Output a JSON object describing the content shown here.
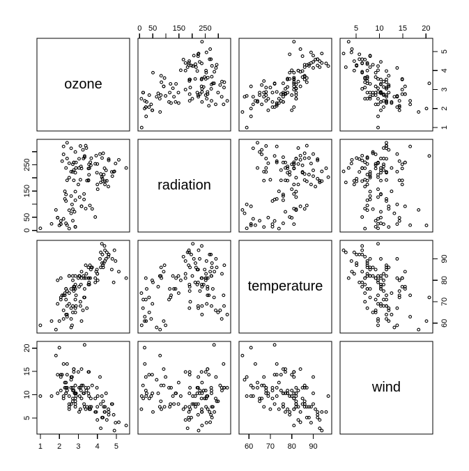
{
  "figure": {
    "background": "#ffffff",
    "frame_color": "#000000",
    "text_color": "#000000"
  },
  "chart_data": {
    "type": "scatter",
    "subtype": "scatterplot-matrix",
    "title": "",
    "grid": false,
    "marker": {
      "shape": "open-circle",
      "color": "#000000"
    },
    "axis_layout": {
      "top_axis_columns": [
        2,
        4
      ],
      "bottom_axis_columns": [
        1,
        3
      ],
      "left_axis_rows": [
        2,
        4
      ],
      "right_axis_rows": [
        1,
        3
      ]
    },
    "variables": [
      {
        "name": "ozone",
        "label": "ozone",
        "range": [
          0.82,
          5.7
        ],
        "ticks": [
          1,
          2,
          3,
          4,
          5
        ],
        "tick_labels": [
          "1",
          "2",
          "3",
          "4",
          "5"
        ]
      },
      {
        "name": "radiation",
        "label": "radiation",
        "range": [
          -6.1,
          347.1
        ],
        "ticks": [
          0,
          50,
          100,
          150,
          200,
          250,
          300
        ],
        "tick_labels": [
          "0",
          "50",
          "",
          "150",
          "",
          "250",
          ""
        ]
      },
      {
        "name": "temperature",
        "label": "temperature",
        "range": [
          55.4,
          98.6
        ],
        "ticks": [
          60,
          70,
          80,
          90
        ],
        "tick_labels": [
          "60",
          "70",
          "80",
          "90"
        ]
      },
      {
        "name": "wind",
        "label": "wind",
        "range": [
          1.56,
          21.44
        ],
        "ticks": [
          5,
          10,
          15,
          20
        ],
        "tick_labels": [
          "5",
          "10",
          "15",
          "20"
        ]
      }
    ],
    "observations": {
      "ozone": [
        3.45,
        3.3,
        2.29,
        2.62,
        2.84,
        2.67,
        2.0,
        2.52,
        2.22,
        2.41,
        2.62,
        2.41,
        3.24,
        1.82,
        3.11,
        2.22,
        1.0,
        2.22,
        1.59,
        3.17,
        2.84,
        3.56,
        4.86,
        3.33,
        3.07,
        4.14,
        3.39,
        2.84,
        2.76,
        3.33,
        2.71,
        2.29,
        2.35,
        5.13,
        3.66,
        3.17,
        4.0,
        3.42,
        4.25,
        4.6,
        4.6,
        4.4,
        2.15,
        3.0,
        1.91,
        3.63,
        3.27,
        3.94,
        4.29,
        3.98,
        2.52,
        4.31,
        4.76,
        2.71,
        3.73,
        4.34,
        3.68,
        4.0,
        3.89,
        3.39,
        2.08,
        2.52,
        4.96,
        4.46,
        4.79,
        3.53,
        3.04,
        4.02,
        2.8,
        3.89,
        2.84,
        3.14,
        3.53,
        2.76,
        2.08,
        3.56,
        5.52,
        4.18,
        4.24,
        4.9,
        4.38,
        4.4,
        4.58,
        4.27,
        4.18,
        4.5,
        3.61,
        3.17,
        2.71,
        2.84,
        2.76,
        2.88,
        3.53,
        2.76,
        3.04,
        2.08,
        2.35,
        3.58,
        2.62,
        2.35,
        2.88,
        2.52,
        2.35,
        2.84,
        3.3,
        1.91,
        2.41,
        3.11,
        2.41,
        2.62,
        2.71
      ],
      "radiation": [
        190,
        118,
        149,
        313,
        299,
        99,
        19,
        256,
        290,
        274,
        65,
        334,
        307,
        78,
        322,
        44,
        8,
        320,
        25,
        92,
        13,
        252,
        223,
        279,
        127,
        291,
        323,
        148,
        191,
        284,
        37,
        120,
        137,
        269,
        248,
        236,
        175,
        314,
        276,
        267,
        272,
        175,
        264,
        175,
        48,
        260,
        274,
        285,
        187,
        220,
        7,
        294,
        223,
        81,
        82,
        213,
        275,
        253,
        254,
        83,
        24,
        77,
        255,
        229,
        207,
        192,
        273,
        157,
        71,
        51,
        115,
        244,
        190,
        259,
        36,
        212,
        238,
        215,
        203,
        225,
        237,
        188,
        167,
        197,
        183,
        189,
        95,
        92,
        252,
        220,
        230,
        259,
        236,
        259,
        238,
        24,
        112,
        237,
        224,
        27,
        238,
        201,
        238,
        14,
        139,
        49,
        20,
        193,
        191,
        131,
        223
      ],
      "temperature": [
        67,
        72,
        74,
        62,
        65,
        59,
        61,
        69,
        66,
        68,
        58,
        64,
        66,
        57,
        68,
        62,
        59,
        73,
        61,
        61,
        67,
        81,
        79,
        76,
        82,
        90,
        87,
        82,
        77,
        72,
        65,
        73,
        76,
        84,
        85,
        81,
        83,
        83,
        88,
        92,
        92,
        89,
        73,
        81,
        80,
        81,
        82,
        84,
        87,
        85,
        74,
        86,
        85,
        82,
        86,
        88,
        86,
        83,
        81,
        81,
        81,
        82,
        89,
        90,
        90,
        86,
        82,
        80,
        77,
        79,
        76,
        78,
        78,
        77,
        72,
        79,
        81,
        86,
        97,
        94,
        96,
        94,
        91,
        92,
        93,
        93,
        87,
        84,
        80,
        78,
        75,
        73,
        81,
        76,
        77,
        71,
        71,
        78,
        67,
        76,
        68,
        82,
        64,
        71,
        81,
        69,
        63,
        70,
        75,
        76,
        68
      ],
      "wind": [
        7.4,
        8.0,
        12.6,
        11.5,
        8.6,
        13.8,
        20.1,
        9.7,
        9.2,
        10.9,
        13.2,
        11.5,
        12.0,
        18.4,
        11.5,
        9.7,
        9.7,
        16.6,
        9.7,
        12.0,
        12.0,
        14.9,
        5.7,
        7.4,
        9.7,
        13.8,
        11.5,
        8.0,
        14.9,
        20.7,
        9.2,
        11.5,
        10.3,
        4.1,
        9.2,
        9.2,
        4.6,
        10.9,
        5.1,
        6.3,
        5.7,
        7.4,
        14.3,
        14.9,
        14.3,
        6.9,
        10.3,
        6.3,
        5.1,
        11.5,
        6.9,
        8.6,
        8.0,
        8.6,
        12.0,
        7.4,
        7.4,
        7.4,
        9.2,
        6.9,
        13.8,
        7.4,
        4.0,
        10.3,
        8.0,
        11.5,
        11.5,
        9.7,
        10.3,
        6.3,
        7.4,
        10.9,
        10.3,
        15.5,
        14.3,
        9.7,
        3.4,
        8.0,
        9.7,
        2.3,
        6.3,
        6.3,
        6.9,
        5.1,
        2.8,
        4.6,
        7.4,
        15.5,
        10.9,
        10.3,
        10.9,
        9.7,
        14.9,
        15.5,
        6.3,
        10.9,
        11.5,
        6.9,
        13.8,
        10.3,
        10.3,
        8.0,
        12.6,
        9.2,
        10.3,
        10.3,
        16.6,
        6.9,
        14.3,
        8.0,
        11.5
      ]
    }
  }
}
